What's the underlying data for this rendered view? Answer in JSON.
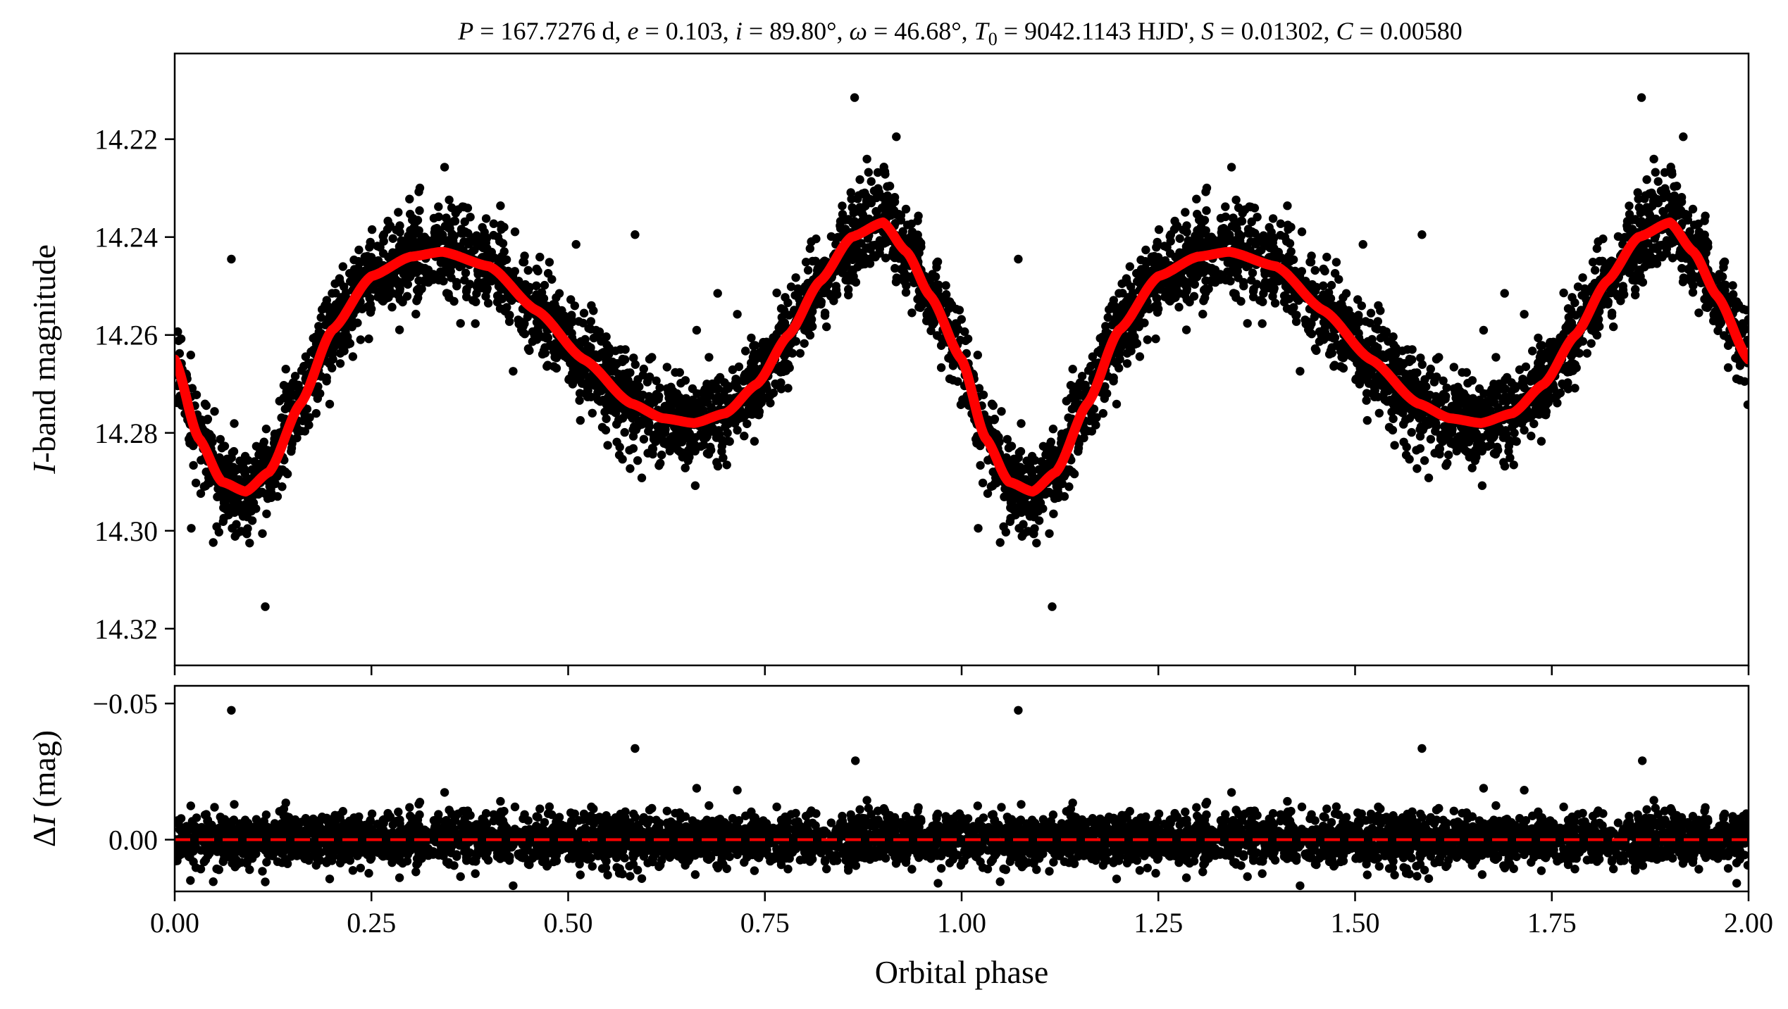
{
  "chart_data": [
    {
      "type": "scatter",
      "panel": "top",
      "title": "P = 167.7276 d, e = 0.103, i = 89.80°, ω = 46.68°, T0 = 9042.1143 HJD', S = 0.01302, C = 0.00580",
      "title_parts": {
        "p_sym": "P",
        "p_val": " = 167.7276 d, ",
        "e_sym": "e",
        "e_val": " = 0.103, ",
        "i_sym": "i",
        "i_val": " = 89.80°, ",
        "w_sym": "ω",
        "w_val": " = 46.68°, ",
        "t_sym": "T",
        "t_sub": "0",
        "t_val": " = 9042.1143 HJD', ",
        "s_sym": "S",
        "s_val": " = 0.01302, ",
        "c_sym": "C",
        "c_val": " = 0.00580"
      },
      "ylabel_symbol": "I",
      "ylabel_rest": "-band magnitude",
      "xlim": [
        0.0,
        2.0
      ],
      "ylim": [
        14.3275,
        14.2025
      ],
      "y_inverted": true,
      "yticks": [
        14.22,
        14.24,
        14.26,
        14.28,
        14.3,
        14.32
      ],
      "ytick_labels": [
        "14.22",
        "14.24",
        "14.26",
        "14.28",
        "14.30",
        "14.32"
      ],
      "grid": false,
      "series": [
        {
          "kind": "observations",
          "color": "#000000",
          "model_phase": [
            0.0,
            0.09,
            0.34,
            0.66,
            0.9,
            1.0
          ],
          "model_mag": [
            14.265,
            14.292,
            14.243,
            14.278,
            14.237,
            14.265
          ],
          "scatter_sigma_mag": 0.0045
        },
        {
          "kind": "model",
          "color": "#ff0000",
          "phase": [
            0.0,
            0.03,
            0.06,
            0.09,
            0.12,
            0.16,
            0.2,
            0.25,
            0.3,
            0.34,
            0.4,
            0.46,
            0.52,
            0.58,
            0.62,
            0.66,
            0.7,
            0.74,
            0.78,
            0.82,
            0.86,
            0.9,
            0.93,
            0.96,
            1.0
          ],
          "mag": [
            14.265,
            14.281,
            14.29,
            14.292,
            14.288,
            14.274,
            14.259,
            14.248,
            14.244,
            14.243,
            14.246,
            14.255,
            14.265,
            14.274,
            14.277,
            14.278,
            14.276,
            14.27,
            14.26,
            14.249,
            14.24,
            14.237,
            14.243,
            14.252,
            14.265
          ]
        }
      ],
      "outliers": [
        {
          "phase": 0.072,
          "mag": 14.2445
        },
        {
          "phase": 0.115,
          "mag": 14.3155
        },
        {
          "phase": 0.021,
          "mag": 14.2995
        },
        {
          "phase": 0.864,
          "mag": 14.2115
        },
        {
          "phase": 0.917,
          "mag": 14.2195
        },
        {
          "phase": 0.585,
          "mag": 14.2395
        },
        {
          "phase": 0.51,
          "mag": 14.2415
        },
        {
          "phase": 0.69,
          "mag": 14.2515
        }
      ]
    },
    {
      "type": "scatter",
      "panel": "bottom",
      "xlabel": "Orbital phase",
      "ylabel_prefix": "Δ",
      "ylabel_symbol": "I",
      "ylabel_rest": " (mag)",
      "xlim": [
        0.0,
        2.0
      ],
      "ylim": [
        0.019,
        -0.0565
      ],
      "y_inverted": true,
      "xticks": [
        0.0,
        0.25,
        0.5,
        0.75,
        1.0,
        1.25,
        1.5,
        1.75,
        2.0
      ],
      "xtick_labels": [
        "0.00",
        "0.25",
        "0.50",
        "0.75",
        "1.00",
        "1.25",
        "1.50",
        "1.75",
        "2.00"
      ],
      "yticks": [
        0.0,
        -0.05
      ],
      "ytick_labels": [
        "0.00",
        "−0.05"
      ],
      "zero_line": {
        "value": 0.0,
        "color": "#ff0000",
        "style": "dashed"
      },
      "residual_sigma_mag": 0.0045,
      "outliers": [
        {
          "phase": 0.072,
          "res": -0.0475
        },
        {
          "phase": 1.072,
          "res": -0.0475
        },
        {
          "phase": 0.585,
          "res": -0.0335
        },
        {
          "phase": 1.585,
          "res": -0.0335
        },
        {
          "phase": 0.865,
          "res": -0.029
        },
        {
          "phase": 1.865,
          "res": -0.029
        },
        {
          "phase": 0.02,
          "res": 0.015
        },
        {
          "phase": 0.115,
          "res": 0.0155
        },
        {
          "phase": 0.97,
          "res": 0.016
        },
        {
          "phase": 1.985,
          "res": 0.016
        }
      ]
    }
  ]
}
